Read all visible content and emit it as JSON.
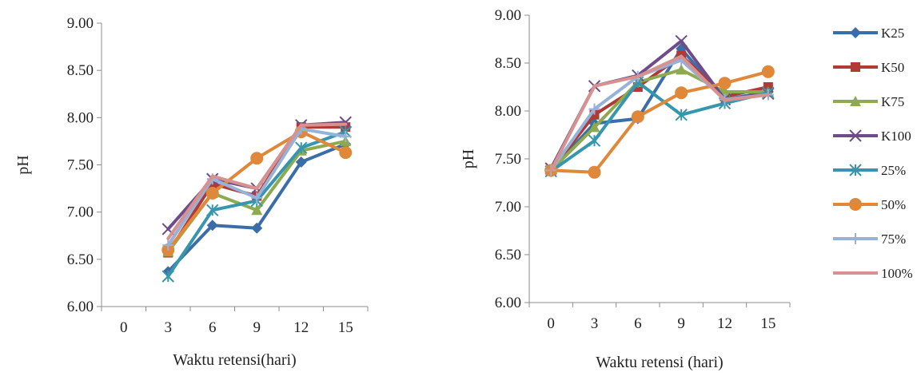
{
  "chart_data": [
    {
      "type": "line",
      "x": [
        "0",
        "3",
        "6",
        "9",
        "12",
        "15"
      ],
      "xlabel": "Waktu retensi(hari)",
      "ylabel": "pH",
      "ylim": [
        6.0,
        9.0
      ],
      "yticks": [
        "6.00",
        "6.50",
        "7.00",
        "7.50",
        "8.00",
        "8.50",
        "9.00"
      ],
      "grid": false,
      "series": [
        {
          "name": "K25",
          "values": [
            null,
            6.37,
            6.86,
            6.83,
            7.53,
            7.72
          ]
        },
        {
          "name": "K50",
          "values": [
            null,
            6.57,
            7.3,
            7.17,
            7.9,
            7.9
          ]
        },
        {
          "name": "K75",
          "values": [
            null,
            6.58,
            7.2,
            7.02,
            7.65,
            7.75
          ]
        },
        {
          "name": "K100",
          "values": [
            null,
            6.82,
            7.35,
            7.25,
            7.92,
            7.95
          ]
        },
        {
          "name": "25%",
          "values": [
            null,
            6.32,
            7.02,
            7.12,
            7.68,
            7.85
          ]
        },
        {
          "name": "50%",
          "values": [
            null,
            6.6,
            7.2,
            7.57,
            7.85,
            7.63
          ]
        },
        {
          "name": "75%",
          "values": [
            null,
            6.65,
            7.35,
            7.15,
            7.88,
            7.8
          ]
        },
        {
          "name": "100%",
          "values": [
            null,
            6.72,
            7.38,
            7.25,
            7.92,
            7.93
          ]
        }
      ]
    },
    {
      "type": "line",
      "x": [
        "0",
        "3",
        "6",
        "9",
        "12",
        "15"
      ],
      "xlabel": "Waktu retensi (hari)",
      "ylabel": "pH",
      "ylim": [
        6.0,
        9.0
      ],
      "yticks": [
        "6.00",
        "6.50",
        "7.00",
        "7.50",
        "8.00",
        "8.50",
        "9.00"
      ],
      "grid": false,
      "legend_position": "right",
      "series": [
        {
          "name": "K25",
          "values": [
            7.38,
            7.87,
            7.92,
            8.65,
            8.12,
            8.2
          ]
        },
        {
          "name": "K50",
          "values": [
            7.38,
            7.96,
            8.25,
            8.58,
            8.15,
            8.25
          ]
        },
        {
          "name": "K75",
          "values": [
            7.38,
            7.83,
            8.3,
            8.43,
            8.2,
            8.2
          ]
        },
        {
          "name": "K100",
          "values": [
            7.4,
            8.26,
            8.37,
            8.73,
            8.12,
            8.18
          ]
        },
        {
          "name": "25%",
          "values": [
            7.37,
            7.69,
            8.3,
            7.96,
            8.08,
            8.19
          ]
        },
        {
          "name": "50%",
          "values": [
            7.38,
            7.36,
            7.94,
            8.19,
            8.29,
            8.41
          ]
        },
        {
          "name": "75%",
          "values": [
            7.38,
            8.02,
            8.36,
            8.53,
            8.12,
            8.17
          ]
        },
        {
          "name": "100%",
          "values": [
            7.38,
            8.26,
            8.36,
            8.57,
            8.11,
            8.17
          ]
        }
      ]
    }
  ],
  "series_styles": [
    {
      "color": "#3b6ea8",
      "marker": "diamond"
    },
    {
      "color": "#b03a35",
      "marker": "square"
    },
    {
      "color": "#8daa4e",
      "marker": "triangle"
    },
    {
      "color": "#6f4b8c",
      "marker": "x"
    },
    {
      "color": "#3596ad",
      "marker": "asterisk"
    },
    {
      "color": "#e0883a",
      "marker": "circle"
    },
    {
      "color": "#97b1d8",
      "marker": "plus"
    },
    {
      "color": "#d7918e",
      "marker": "none"
    }
  ]
}
